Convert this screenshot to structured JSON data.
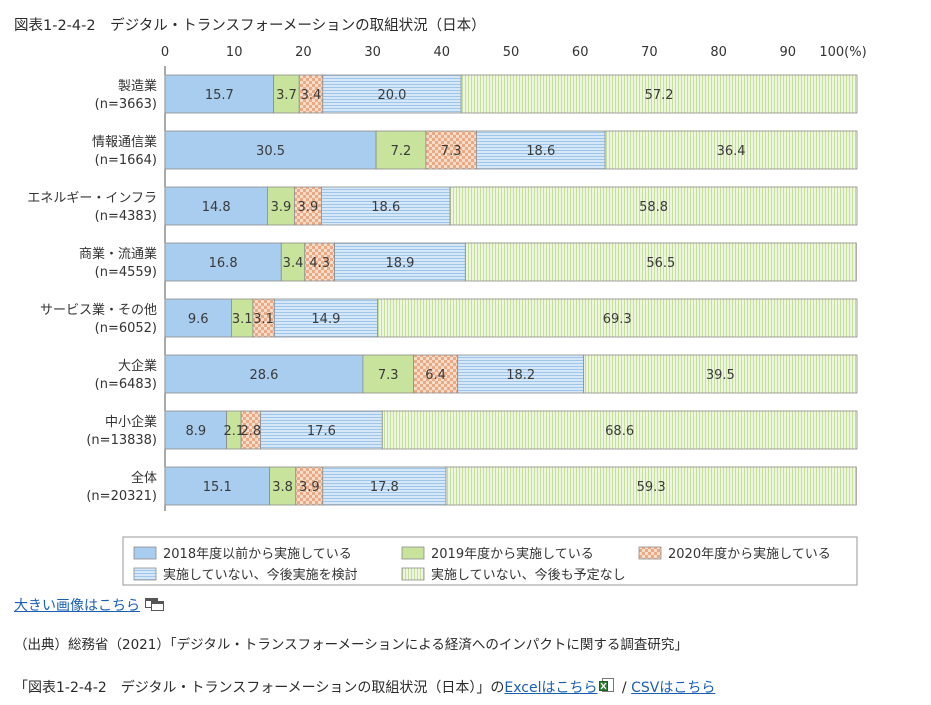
{
  "page_title": "図表1-2-4-2　デジタル・トランスフォーメーションの取組状況（日本）",
  "links": {
    "large_image": "大きい画像はこちら"
  },
  "source": "（出典）総務省（2021）「デジタル・トランスフォーメーションによる経済へのインパクトに関する調査研究」",
  "footer": {
    "prefix": "「図表1-2-4-2　デジタル・トランスフォーメーションの取組状況（日本）」の",
    "excel_link": "Excelはこちら",
    "separator": " / ",
    "csv_link": "CSVはこちら"
  },
  "icons": [
    "window-icon",
    "excel-file-icon"
  ],
  "chart_data": {
    "type": "bar",
    "orientation": "horizontal",
    "stacked": true,
    "xlim": [
      0,
      100
    ],
    "xticks": [
      "0",
      "10",
      "20",
      "30",
      "40",
      "50",
      "60",
      "70",
      "80",
      "90",
      "100(%)"
    ],
    "legend_position": "bottom",
    "categories": [
      [
        "製造業",
        "(n=3663)"
      ],
      [
        "情報通信業",
        "(n=1664)"
      ],
      [
        "エネルギー・インフラ",
        "(n=4383)"
      ],
      [
        "商業・流通業",
        "(n=4559)"
      ],
      [
        "サービス業・その他",
        "(n=6052)"
      ],
      [
        "大企業",
        "(n=6483)"
      ],
      [
        "中小企業",
        "(n=13838)"
      ],
      [
        "全体",
        "(n=20321)"
      ]
    ],
    "series": [
      {
        "name": "2018年度以前から実施している",
        "color": "#a9cdef",
        "pattern": "solid",
        "values": [
          15.7,
          30.5,
          14.8,
          16.8,
          9.6,
          28.6,
          8.9,
          15.1
        ]
      },
      {
        "name": "2019年度から実施している",
        "color": "#c8e39b",
        "pattern": "solid",
        "values": [
          3.7,
          7.2,
          3.9,
          3.4,
          3.1,
          7.3,
          2.1,
          3.8
        ]
      },
      {
        "name": "2020年度から実施している",
        "color": "#f3cfb6",
        "pattern": "checker",
        "values": [
          3.4,
          7.3,
          3.9,
          4.3,
          3.1,
          6.4,
          2.8,
          3.9
        ]
      },
      {
        "name": "実施していない、今後実施を検討",
        "color": "#cde3f7",
        "pattern": "horizontal-lines",
        "values": [
          20.0,
          18.6,
          18.6,
          18.9,
          14.9,
          18.2,
          17.6,
          17.8
        ]
      },
      {
        "name": "実施していない、今後も予定なし",
        "color": "#e3f1cd",
        "pattern": "vertical-lines",
        "values": [
          57.2,
          36.4,
          58.8,
          56.5,
          69.3,
          39.5,
          68.6,
          59.3
        ]
      }
    ],
    "data_labels": [
      [
        "15.7",
        "3.7",
        "3.4",
        "20.0",
        "57.2"
      ],
      [
        "30.5",
        "7.2",
        "7.3",
        "18.6",
        "36.4"
      ],
      [
        "14.8",
        "3.9",
        "3.9",
        "18.6",
        "58.8"
      ],
      [
        "16.8",
        "3.4",
        "4.3",
        "18.9",
        "56.5"
      ],
      [
        "9.6",
        "3.1",
        "3.1",
        "14.9",
        "69.3"
      ],
      [
        "28.6",
        "7.3",
        "6.4",
        "18.2",
        "39.5"
      ],
      [
        "8.9",
        "2.1",
        "2.8",
        "17.6",
        "68.6"
      ],
      [
        "15.1",
        "3.8",
        "3.9",
        "17.8",
        "59.3"
      ]
    ]
  }
}
